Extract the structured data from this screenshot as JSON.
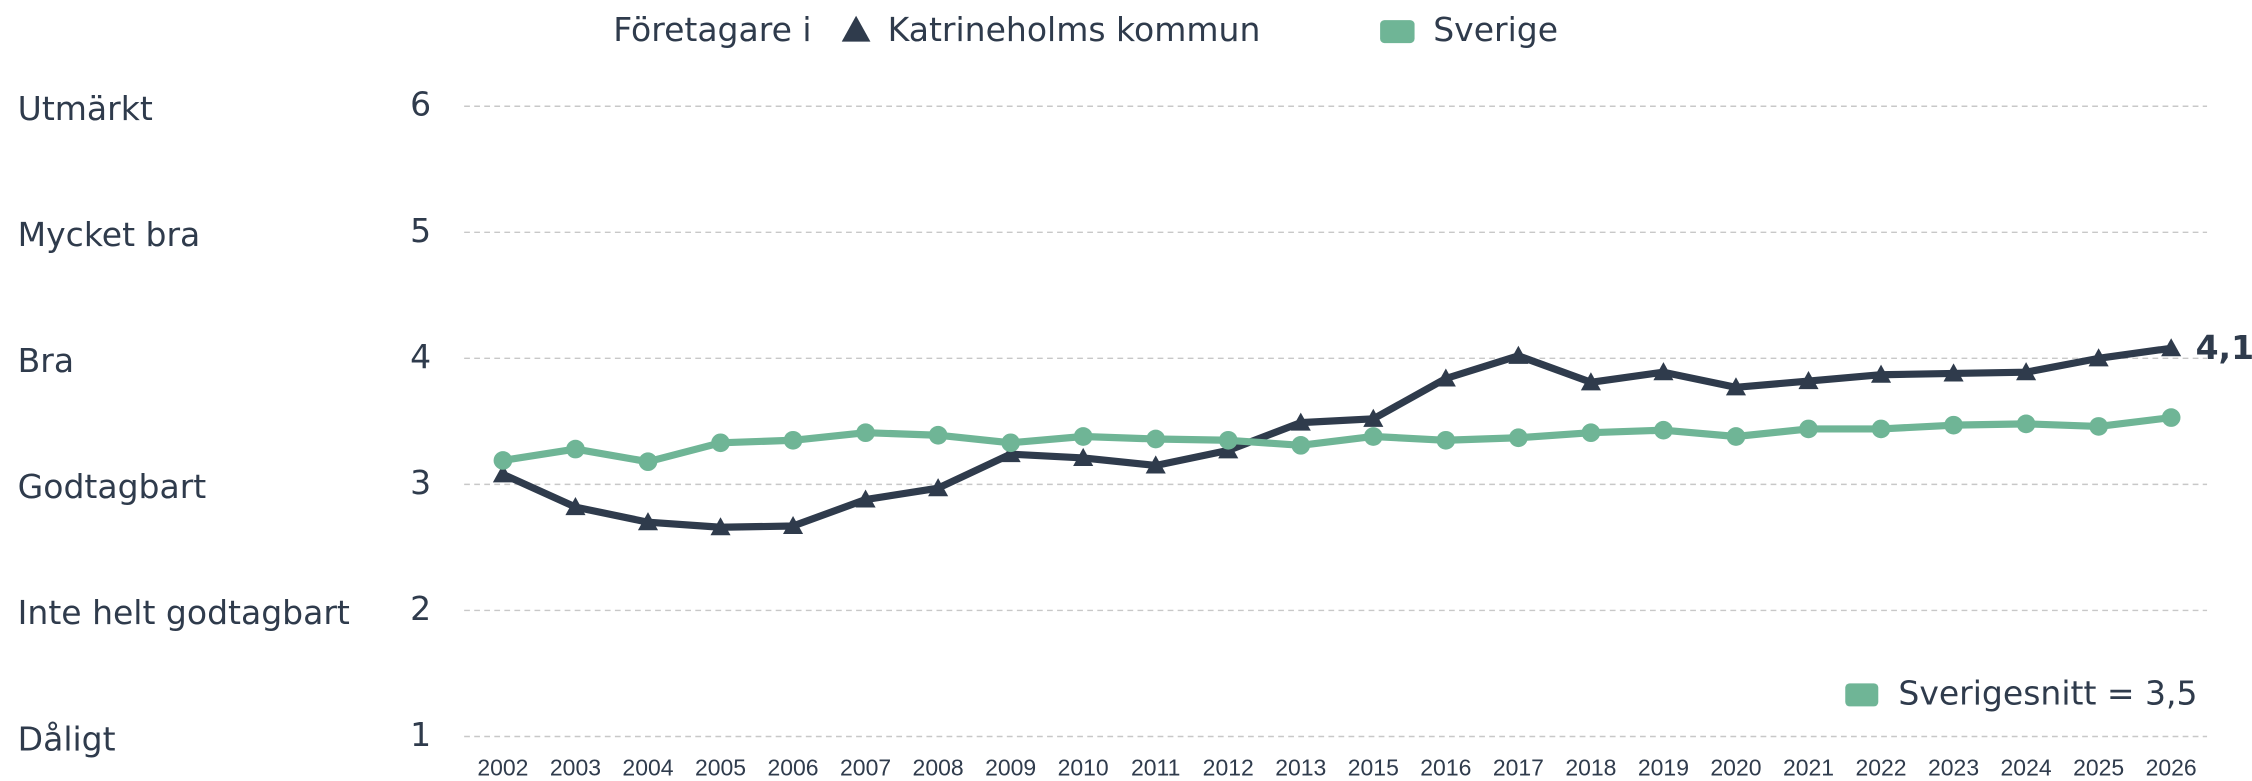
{
  "chart_data": {
    "type": "line",
    "legend_prefix": "Företagare i",
    "annotation": "Sverigesnitt = 3,5",
    "categories": [
      "2002",
      "2003",
      "2004",
      "2005",
      "2006",
      "2007",
      "2008",
      "2009",
      "2010",
      "2011",
      "2012",
      "2013",
      "2015",
      "2016",
      "2017",
      "2018",
      "2019",
      "2020",
      "2021",
      "2022",
      "2023",
      "2024",
      "2025",
      "2026"
    ],
    "series": [
      {
        "name": "Katrineholms kommun",
        "color": "#2f3b4c",
        "marker": "triangle",
        "values": [
          3.08,
          2.82,
          2.7,
          2.66,
          2.67,
          2.88,
          2.97,
          3.24,
          3.21,
          3.15,
          3.27,
          3.49,
          3.52,
          3.84,
          4.02,
          3.81,
          3.89,
          3.77,
          3.82,
          3.87,
          3.88,
          3.89,
          4.0,
          4.08
        ],
        "value_labels": [
          null,
          null,
          null,
          null,
          null,
          null,
          null,
          null,
          null,
          null,
          null,
          null,
          null,
          null,
          null,
          null,
          null,
          null,
          null,
          null,
          null,
          null,
          null,
          "4,1"
        ]
      },
      {
        "name": "Sverige",
        "color": "#6fb596",
        "marker": "circle",
        "values": [
          3.19,
          3.28,
          3.18,
          3.33,
          3.35,
          3.41,
          3.39,
          3.33,
          3.38,
          3.36,
          3.35,
          3.31,
          3.38,
          3.35,
          3.37,
          3.41,
          3.43,
          3.38,
          3.44,
          3.44,
          3.47,
          3.48,
          3.46,
          3.53
        ]
      }
    ],
    "ylim": [
      1,
      6
    ],
    "yticks": [
      1,
      2,
      3,
      4,
      5,
      6
    ],
    "ytick_names": [
      "Dåligt",
      "Inte helt godtagbart",
      "Godtagbart",
      "Bra",
      "Mycket bra",
      "Utmärkt"
    ],
    "grid": true
  }
}
